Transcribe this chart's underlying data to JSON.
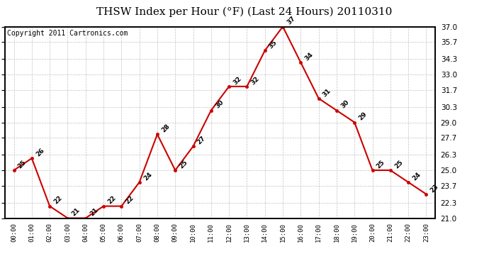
{
  "title": "THSW Index per Hour (°F) (Last 24 Hours) 20110310",
  "copyright": "Copyright 2011 Cartronics.com",
  "hours": [
    "00:00",
    "01:00",
    "02:00",
    "03:00",
    "04:00",
    "05:00",
    "06:00",
    "07:00",
    "08:00",
    "09:00",
    "10:00",
    "11:00",
    "12:00",
    "13:00",
    "14:00",
    "15:00",
    "16:00",
    "17:00",
    "18:00",
    "19:00",
    "20:00",
    "21:00",
    "22:00",
    "23:00"
  ],
  "values": [
    25,
    26,
    22,
    21,
    21,
    22,
    22,
    24,
    28,
    25,
    27,
    30,
    32,
    32,
    35,
    37,
    34,
    31,
    30,
    29,
    25,
    25,
    24,
    23
  ],
  "ylim_min": 21.0,
  "ylim_max": 37.0,
  "yticks": [
    21.0,
    22.3,
    23.7,
    25.0,
    26.3,
    27.7,
    29.0,
    30.3,
    31.7,
    33.0,
    34.3,
    35.7,
    37.0
  ],
  "line_color": "#cc0000",
  "marker_color": "#cc0000",
  "bg_color": "#ffffff",
  "grid_color": "#bbbbbb",
  "title_fontsize": 11,
  "copyright_fontsize": 7
}
